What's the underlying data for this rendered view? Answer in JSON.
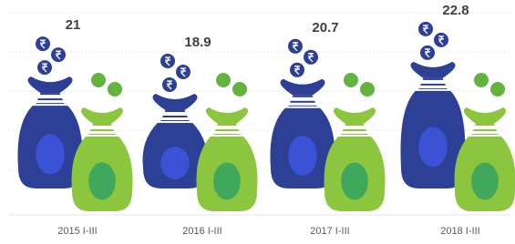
{
  "chart_data": {
    "type": "pictorial-bar",
    "categories": [
      "2015 I-III",
      "2016 I-III",
      "2017 I-III",
      "2018 I-III"
    ],
    "values": [
      21,
      18.9,
      20.7,
      22.8
    ],
    "color": "#2e3f96"
  }
}
